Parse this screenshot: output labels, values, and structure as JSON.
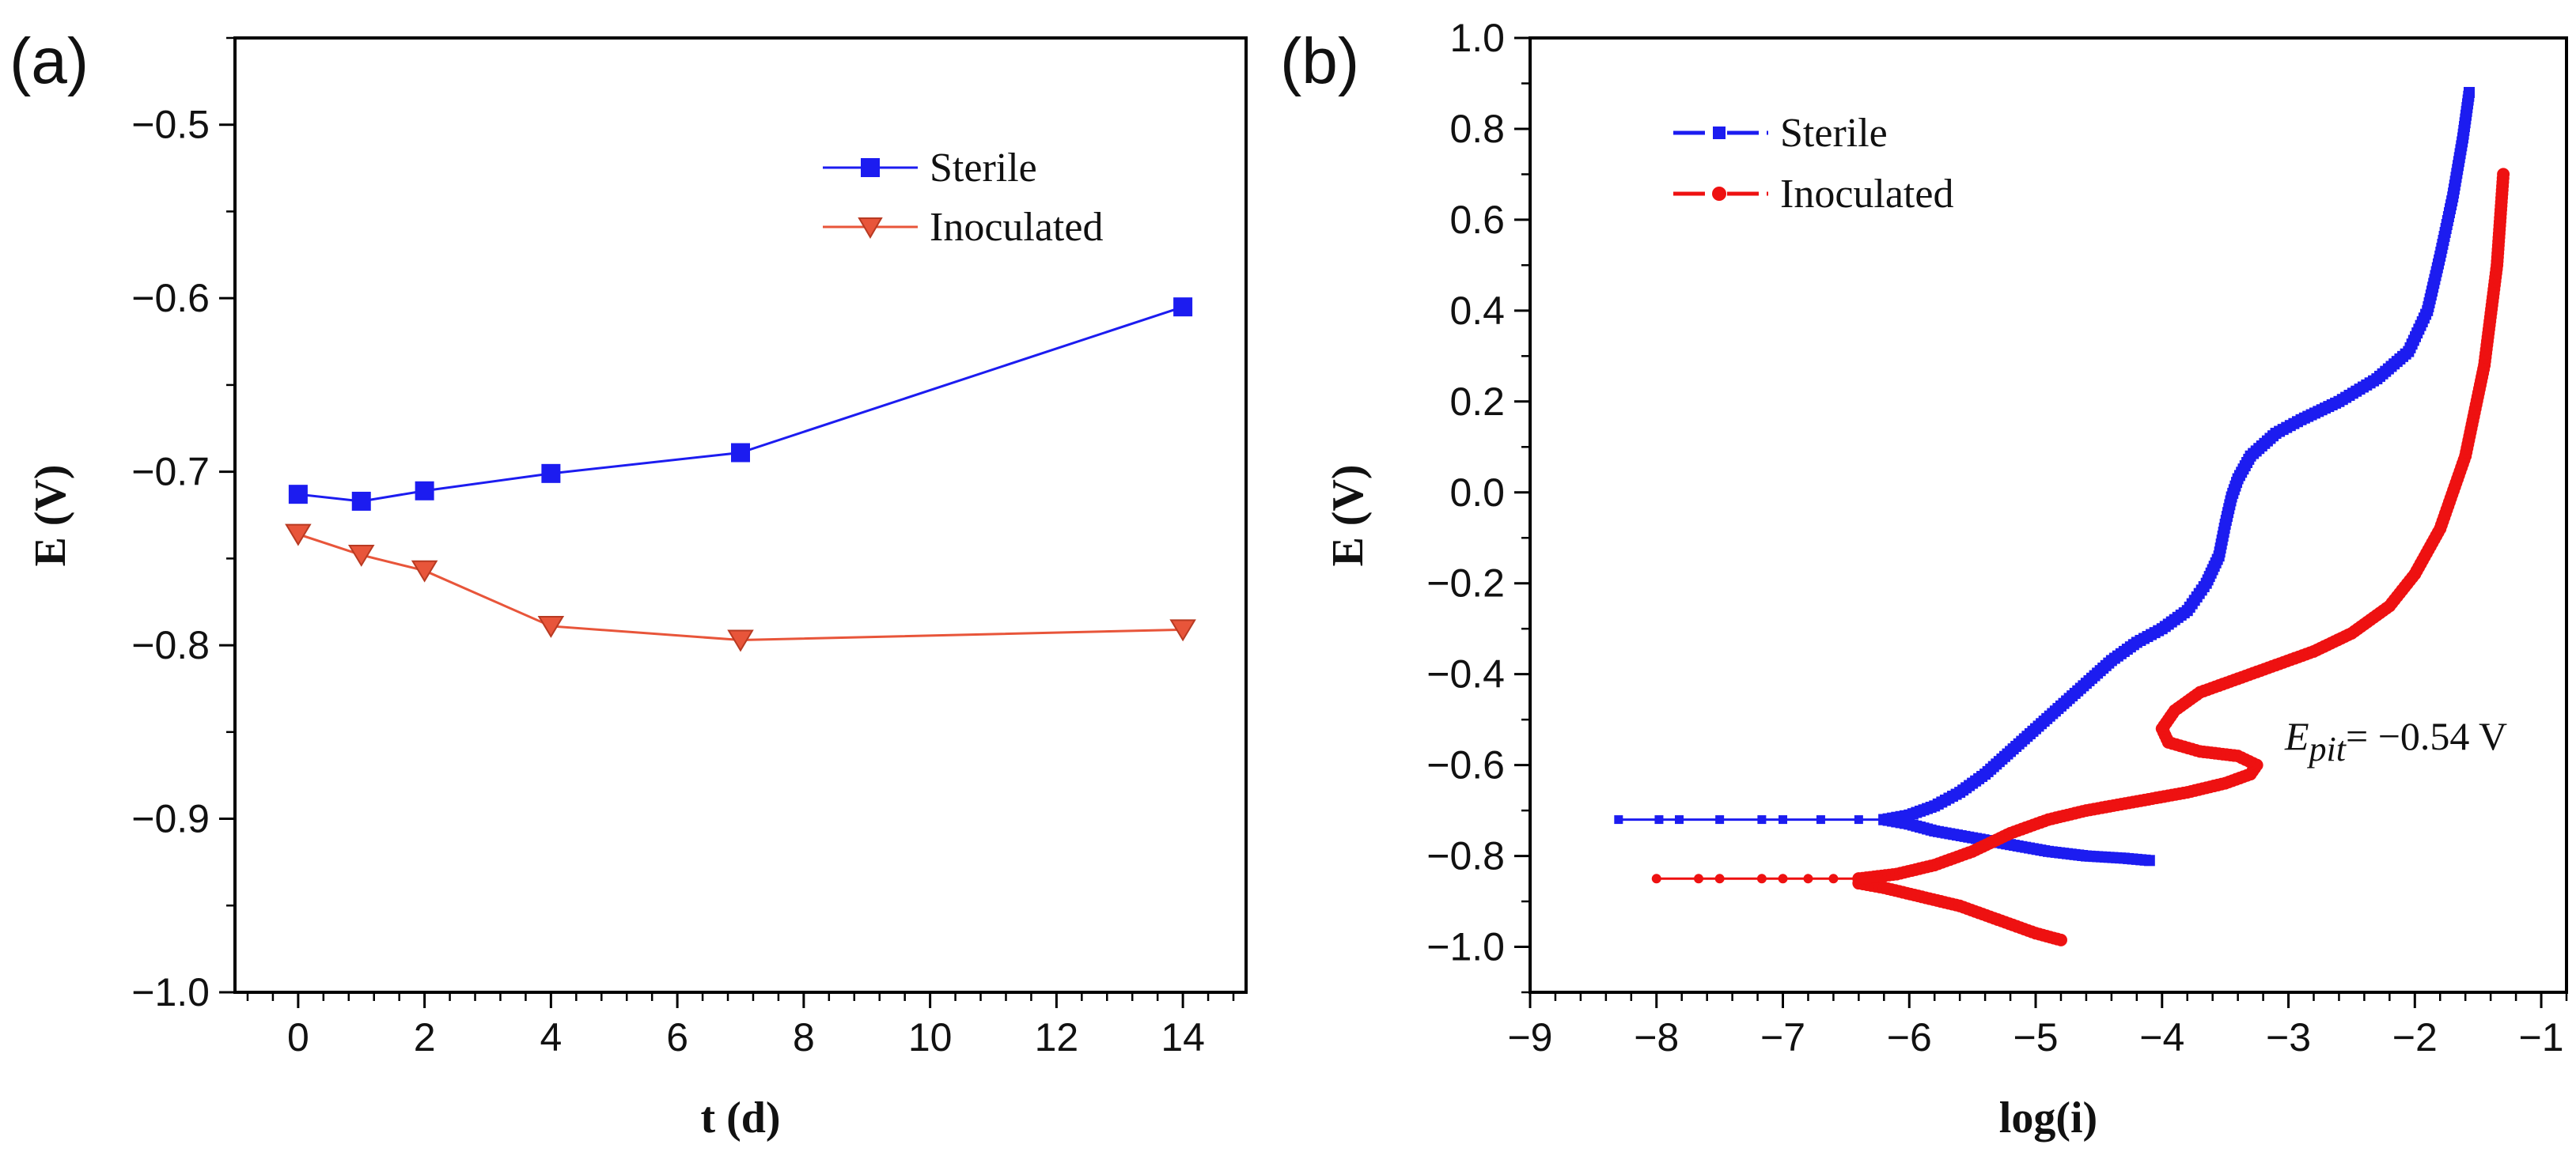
{
  "chart_data": [
    {
      "panel": "(a)",
      "type": "line",
      "title": "",
      "xlabel": "t (d)",
      "ylabel": "E (V)",
      "xlim": [
        -1,
        15
      ],
      "ylim": [
        -1.0,
        -0.45
      ],
      "xticks": [
        0,
        2,
        4,
        6,
        8,
        10,
        12,
        14
      ],
      "xtick_labels": [
        "0",
        "2",
        "4",
        "6",
        "8",
        "10",
        "12",
        "14"
      ],
      "yticks": [
        -1.0,
        -0.9,
        -0.8,
        -0.7,
        -0.6,
        -0.5
      ],
      "ytick_labels": [
        "−1.0",
        "−0.9",
        "−0.8",
        "−0.7",
        "−0.6",
        "−0.5"
      ],
      "grid": false,
      "legend_position": "top-right",
      "series": [
        {
          "name": "Sterile",
          "color": "#1c1cf0",
          "marker": "square",
          "x": [
            0,
            1,
            2,
            4,
            7,
            14
          ],
          "y": [
            -0.713,
            -0.717,
            -0.711,
            -0.701,
            -0.689,
            -0.605
          ]
        },
        {
          "name": "Inoculated",
          "color": "#e8553a",
          "marker": "triangle-down",
          "x": [
            0,
            1,
            2,
            4,
            7,
            14
          ],
          "y": [
            -0.736,
            -0.748,
            -0.757,
            -0.789,
            -0.797,
            -0.791
          ]
        }
      ]
    },
    {
      "panel": "(b)",
      "type": "scatter",
      "title": "",
      "xlabel": "log(i)",
      "ylabel": "E (V)",
      "xlim": [
        -9,
        -0.8
      ],
      "ylim": [
        -1.1,
        1.0
      ],
      "xticks": [
        -9,
        -8,
        -7,
        -6,
        -5,
        -4,
        -3,
        -2,
        -1
      ],
      "xtick_labels": [
        "−9",
        "−8",
        "−7",
        "−6",
        "−5",
        "−4",
        "−3",
        "−2",
        "−1"
      ],
      "yticks": [
        -1.0,
        -0.8,
        -0.6,
        -0.4,
        -0.2,
        0.0,
        0.2,
        0.4,
        0.6,
        0.8,
        1.0
      ],
      "ytick_labels": [
        "−1.0",
        "−0.8",
        "−0.6",
        "−0.4",
        "−0.2",
        "0.0",
        "0.2",
        "0.4",
        "0.6",
        "0.8",
        "1.0"
      ],
      "grid": false,
      "legend_position": "top-left",
      "annotation": {
        "text_main": "E",
        "text_sub": "pit",
        "text_rest": "= −0.54 V"
      },
      "series": [
        {
          "name": "Sterile",
          "color": "#1c1cf0",
          "branches": [
            {
              "x": [
                -8.3,
                -7.5,
                -7.0,
                -6.7,
                -6.4,
                -6.2
              ],
              "y": [
                -0.72,
                -0.72,
                -0.72,
                -0.72,
                -0.72,
                -0.72
              ]
            },
            {
              "x": [
                -6.2,
                -6.0,
                -5.8,
                -5.5,
                -5.2,
                -4.9,
                -4.6,
                -4.3,
                -4.1
              ],
              "y": [
                -0.72,
                -0.73,
                -0.745,
                -0.76,
                -0.775,
                -0.79,
                -0.8,
                -0.805,
                -0.81
              ]
            },
            {
              "x": [
                -6.2,
                -6.0,
                -5.8,
                -5.6,
                -5.4,
                -5.2,
                -5.0,
                -4.8,
                -4.6,
                -4.4,
                -4.2,
                -4.0,
                -3.8,
                -3.65,
                -3.55,
                -3.5,
                -3.45,
                -3.4,
                -3.3,
                -3.1,
                -2.9,
                -2.6,
                -2.3,
                -2.05,
                -1.9,
                -1.8,
                -1.7,
                -1.62,
                -1.57
              ],
              "y": [
                -0.72,
                -0.71,
                -0.69,
                -0.66,
                -0.62,
                -0.57,
                -0.52,
                -0.47,
                -0.42,
                -0.37,
                -0.33,
                -0.3,
                -0.26,
                -0.2,
                -0.14,
                -0.07,
                -0.01,
                0.03,
                0.08,
                0.13,
                0.16,
                0.2,
                0.25,
                0.31,
                0.4,
                0.52,
                0.65,
                0.78,
                0.88
              ]
            }
          ]
        },
        {
          "name": "Inoculated",
          "color": "#ee1111",
          "branches": [
            {
              "x": [
                -8.0,
                -7.5,
                -7.0,
                -6.8,
                -6.6,
                -6.4
              ],
              "y": [
                -0.85,
                -0.85,
                -0.85,
                -0.85,
                -0.85,
                -0.85
              ]
            },
            {
              "x": [
                -6.4,
                -6.2,
                -5.9,
                -5.6,
                -5.3,
                -5.0,
                -4.8
              ],
              "y": [
                -0.86,
                -0.87,
                -0.89,
                -0.91,
                -0.94,
                -0.97,
                -0.985
              ]
            },
            {
              "x": [
                -6.4,
                -6.1,
                -5.8,
                -5.5,
                -5.2,
                -4.9,
                -4.6,
                -4.2,
                -3.8,
                -3.5,
                -3.3,
                -3.25,
                -3.4,
                -3.7,
                -3.95,
                -4.0,
                -3.9,
                -3.7,
                -3.4,
                -3.1,
                -2.8,
                -2.5,
                -2.2,
                -2.0,
                -1.8,
                -1.6,
                -1.45,
                -1.35,
                -1.3
              ],
              "y": [
                -0.85,
                -0.84,
                -0.82,
                -0.79,
                -0.75,
                -0.72,
                -0.7,
                -0.68,
                -0.66,
                -0.64,
                -0.62,
                -0.6,
                -0.58,
                -0.57,
                -0.55,
                -0.52,
                -0.48,
                -0.44,
                -0.41,
                -0.38,
                -0.35,
                -0.31,
                -0.25,
                -0.18,
                -0.08,
                0.08,
                0.28,
                0.5,
                0.7
              ]
            }
          ]
        }
      ]
    }
  ]
}
